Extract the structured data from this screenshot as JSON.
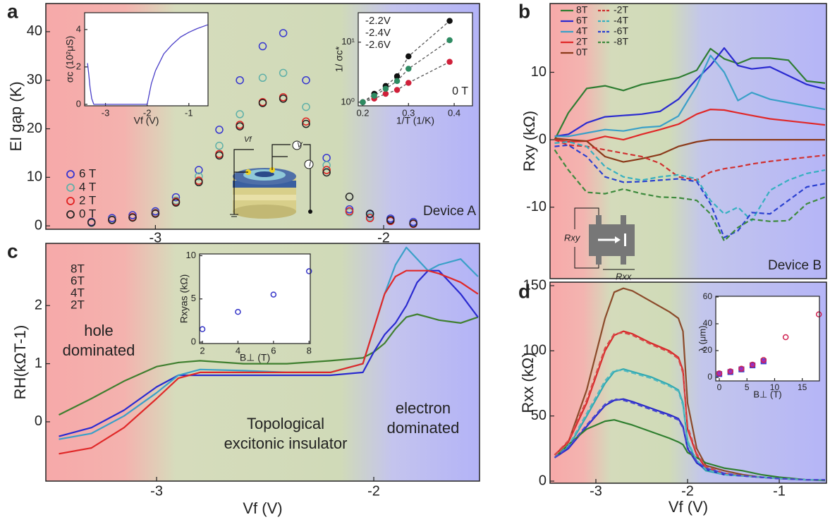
{
  "chart_data": [
    {
      "panel": "a",
      "type": "scatter",
      "ylabel": "EI gap (K)",
      "xlim": [
        -3.48,
        -1.58
      ],
      "ylim": [
        -0.7,
        45.8
      ],
      "xticks": [
        -3,
        -2
      ],
      "yticks": [
        0,
        10,
        20,
        30,
        40
      ],
      "x": [
        -3.28,
        -3.19,
        -3.1,
        -3.0,
        -2.91,
        -2.81,
        -2.72,
        -2.63,
        -2.53,
        -2.44,
        -2.34,
        -2.25,
        -2.15,
        -2.06,
        -1.97,
        -1.87
      ],
      "series": [
        {
          "name": "6 T",
          "color": "#3535d0",
          "values": [
            0.8,
            1.6,
            2.2,
            3.0,
            5.9,
            11.5,
            19.8,
            30,
            37,
            39.7,
            30,
            14,
            3.4,
            2.4,
            1.5,
            0.8
          ]
        },
        {
          "name": "4 T",
          "color": "#5fb0a8",
          "values": [
            0.6,
            1.3,
            1.8,
            2.7,
            5.2,
            10.2,
            16.5,
            23,
            30.5,
            31.5,
            24.5,
            12.5,
            2.8,
            1.9,
            1.0,
            0.5
          ]
        },
        {
          "name": "2 T",
          "color": "#e02020",
          "values": [
            0.7,
            1.2,
            1.8,
            2.6,
            5.0,
            9.3,
            14.8,
            20.8,
            25.5,
            26.5,
            21.5,
            11.5,
            3.0,
            1.6,
            1.0,
            0.4
          ]
        },
        {
          "name": "0 T",
          "color": "#222222",
          "values": [
            0.7,
            1.2,
            1.7,
            2.5,
            4.8,
            9.0,
            14.5,
            20.5,
            25.3,
            26.2,
            21.0,
            11.0,
            6.0,
            2.5,
            1.2,
            0.5
          ]
        }
      ],
      "annotations": [
        [
          "Device A"
        ]
      ],
      "schematic_labels": [
        "Vf",
        "V",
        "I"
      ]
    },
    {
      "type": "line",
      "xlabel": "Vf (V)",
      "ylabel": "σc (10²μS)",
      "xlim": [
        -3.5,
        -0.54
      ],
      "ylim": [
        -0.08,
        4.9
      ],
      "xticks": [
        -3,
        -2,
        -1
      ],
      "yticks": [
        0,
        2,
        4
      ],
      "x": [
        -3.43,
        -3.4,
        -3.37,
        -3.33,
        -3.28,
        -3.0,
        -2.5,
        -2.0,
        -1.9,
        -1.8,
        -1.6,
        -1.4,
        -1.2,
        -1.0,
        -0.8,
        -0.55
      ],
      "series": [
        {
          "color": "#4a3fc8",
          "values": [
            2.2,
            1.6,
            0.9,
            0.3,
            0,
            0,
            0,
            0,
            1.1,
            1.8,
            2.7,
            3.2,
            3.6,
            3.85,
            4.05,
            4.25
          ]
        }
      ]
    },
    {
      "type": "line",
      "log_y": true,
      "xlabel": "1/T (1/K)",
      "ylabel": "1/ σc*",
      "xlim": [
        0.19,
        0.44
      ],
      "ylim": [
        0.87,
        31
      ],
      "xticks": [
        0.2,
        0.3,
        0.4
      ],
      "yticks": [
        {
          "value": 1,
          "label": "10⁰"
        },
        {
          "value": 10,
          "label": "10¹"
        }
      ],
      "x": [
        0.2,
        0.225,
        0.25,
        0.275,
        0.3,
        0.39
      ],
      "series": [
        {
          "name": "-2.2V",
          "color": "#d0203a",
          "dashed": true,
          "marker": "circle",
          "filled": true,
          "values": [
            1,
            1.15,
            1.38,
            1.6,
            2.1,
            4.7
          ]
        },
        {
          "name": "-2.4V",
          "color": "#111111",
          "dashed": true,
          "marker": "circle",
          "filled": true,
          "values": [
            1,
            1.38,
            1.86,
            2.7,
            5.8,
            22.6
          ]
        },
        {
          "name": "-2.6V",
          "color": "#2e8b62",
          "dashed": true,
          "marker": "circle",
          "filled": true,
          "values": [
            1,
            1.28,
            1.67,
            2.25,
            3.6,
            10.8
          ]
        }
      ],
      "annotations": [
        [
          "0 T"
        ]
      ]
    },
    {
      "panel": "b",
      "type": "line",
      "ylabel": "Rxy (kΩ)",
      "xlim": [
        -3.5,
        -0.485
      ],
      "ylim": [
        -20.6,
        20.2
      ],
      "yticks": [
        -10,
        0,
        10
      ],
      "x": [
        -3.45,
        -3.3,
        -3.1,
        -2.9,
        -2.7,
        -2.5,
        -2.3,
        -2.1,
        -1.9,
        -1.75,
        -1.6,
        -1.45,
        -1.3,
        -1.1,
        -0.9,
        -0.7,
        -0.5
      ],
      "series": [
        {
          "name": "8T",
          "color": "#2e7d32",
          "values": [
            0,
            4,
            7.6,
            8,
            7.3,
            8.2,
            8.7,
            9.2,
            10.3,
            13.5,
            12,
            11.3,
            12.1,
            12.1,
            11.8,
            8.7,
            8.4
          ]
        },
        {
          "name": "6T",
          "color": "#2a2ad0",
          "values": [
            0.5,
            0.8,
            2.5,
            3.4,
            3.6,
            3.8,
            4.2,
            6,
            9,
            11,
            13.6,
            11,
            10.5,
            10.8,
            9.5,
            8.2,
            7.5
          ]
        },
        {
          "name": "4T",
          "color": "#3aa0c8",
          "values": [
            0.5,
            0.5,
            1,
            1.5,
            1.3,
            1.8,
            2,
            3.5,
            8,
            12.5,
            10,
            5.8,
            7,
            6,
            5.5,
            5,
            4.5
          ]
        },
        {
          "name": "2T",
          "color": "#e02828",
          "values": [
            0,
            -0.3,
            -0.2,
            0.5,
            0,
            0.8,
            1.5,
            2.3,
            3.8,
            4.5,
            4.4,
            4,
            3.6,
            3.1,
            2.8,
            2.5,
            2.2
          ]
        },
        {
          "name": "0T",
          "color": "#8b3a1a",
          "values": [
            0.2,
            0,
            -0.2,
            -2.5,
            -3.3,
            -2.8,
            -2.2,
            -1,
            -0.3,
            0,
            0,
            0,
            0,
            0,
            0,
            0,
            0
          ]
        },
        {
          "name": "-2T",
          "color": "#d03030",
          "dashed": true,
          "values": [
            0,
            -0.8,
            -1,
            -1.5,
            -2,
            -2.5,
            -3.5,
            -5.5,
            -6,
            -4.8,
            -4.3,
            -4,
            -3.6,
            -3.2,
            -2.9,
            -2.6,
            -2.3
          ]
        },
        {
          "name": "-4T",
          "color": "#35b0c0",
          "dashed": true,
          "values": [
            -0.5,
            -0.3,
            -1,
            -4,
            -5.5,
            -6,
            -5.5,
            -5.2,
            -5.8,
            -9,
            -11,
            -10,
            -12,
            -7.5,
            -6,
            -5,
            -4.5
          ]
        },
        {
          "name": "-6T",
          "color": "#2a40d0",
          "dashed": true,
          "values": [
            -1,
            -0.8,
            -2.5,
            -5.5,
            -6.3,
            -6.2,
            -6,
            -5.8,
            -6.2,
            -9.5,
            -14.5,
            -13.5,
            -10.8,
            -11,
            -9,
            -7,
            -6.5
          ]
        },
        {
          "name": "-8T",
          "color": "#3d8a3d",
          "dashed": true,
          "values": [
            -1.5,
            -4.5,
            -7.8,
            -8,
            -7.3,
            -8,
            -8.5,
            -8.6,
            -9,
            -11,
            -15,
            -13,
            -11.8,
            -12.1,
            -12,
            -9.5,
            -8.5
          ]
        }
      ],
      "annotations": [
        [
          "Device B"
        ]
      ],
      "schematic_labels": [
        "Rxy",
        "Rxx"
      ]
    },
    {
      "panel": "c",
      "type": "line",
      "xlabel": "Vf (V)",
      "ylabel": "RH(kΩT-1)",
      "xlim": [
        -3.51,
        -1.513
      ],
      "ylim": [
        -1.02,
        3.07
      ],
      "xticks": [
        -3,
        -2
      ],
      "yticks": [
        0,
        1,
        2
      ],
      "x": [
        -3.45,
        -3.3,
        -3.15,
        -3.0,
        -2.9,
        -2.8,
        -2.6,
        -2.4,
        -2.2,
        -2.05,
        -2.0,
        -1.95,
        -1.9,
        -1.85,
        -1.8,
        -1.75,
        -1.7,
        -1.6,
        -1.52
      ],
      "series": [
        {
          "name": "8T",
          "color": "#3f7f2f",
          "values": [
            0.12,
            0.4,
            0.7,
            0.95,
            1.02,
            1.05,
            1.0,
            1.0,
            1.05,
            1.1,
            1.2,
            1.35,
            1.6,
            1.8,
            1.85,
            1.8,
            1.75,
            1.7,
            1.8
          ]
        },
        {
          "name": "6T",
          "color": "#2a2ad0",
          "values": [
            -0.25,
            -0.1,
            0.2,
            0.6,
            0.8,
            0.8,
            0.8,
            0.8,
            0.8,
            0.85,
            1.2,
            1.5,
            1.7,
            2.0,
            2.4,
            2.6,
            2.6,
            2.2,
            1.8
          ]
        },
        {
          "name": "4T",
          "color": "#3aa0c8",
          "values": [
            -0.3,
            -0.2,
            0.1,
            0.5,
            0.8,
            0.9,
            0.88,
            0.85,
            0.85,
            1.0,
            1.6,
            2.2,
            2.7,
            3.0,
            2.8,
            2.6,
            2.7,
            2.8,
            2.5
          ]
        },
        {
          "name": "2T",
          "color": "#e02828",
          "values": [
            -0.55,
            -0.45,
            -0.1,
            0.4,
            0.75,
            0.85,
            0.85,
            0.85,
            0.85,
            1.0,
            1.6,
            2.2,
            2.5,
            2.6,
            2.6,
            2.6,
            2.55,
            2.4,
            2.2
          ]
        }
      ],
      "annotations": [
        [
          "hole",
          "dominated"
        ],
        [
          "Topological",
          "excitonic insulator"
        ],
        [
          "electron",
          "dominated"
        ]
      ]
    },
    {
      "type": "scatter",
      "xlabel": "B⊥ (T)",
      "ylabel": "Rxyas (kΩ)",
      "xlim": [
        1.84,
        8.07
      ],
      "ylim": [
        -0.16,
        10.2
      ],
      "xticks": [
        2,
        4,
        6,
        8
      ],
      "yticks": [
        0,
        5,
        10
      ],
      "x": [
        2,
        4,
        6,
        8
      ],
      "series": [
        {
          "color": "#3535c8",
          "values": [
            1.5,
            3.5,
            5.5,
            8.2
          ]
        }
      ]
    },
    {
      "panel": "d",
      "type": "line",
      "xlabel": "Vf (V)",
      "ylabel": "Rxx (kΩ)",
      "xlim": [
        -3.5,
        -0.485
      ],
      "ylim": [
        -1.6,
        152.7
      ],
      "xticks": [
        -3,
        -2,
        -1
      ],
      "yticks": [
        0,
        50,
        100,
        150
      ],
      "x": [
        -3.45,
        -3.3,
        -3.1,
        -2.9,
        -2.8,
        -2.7,
        -2.6,
        -2.4,
        -2.2,
        -2.1,
        -2.05,
        -2.0,
        -1.9,
        -1.8,
        -1.6,
        -1.4,
        -1.2,
        -1.0,
        -0.7,
        -0.5
      ],
      "series": [
        {
          "color": "#8b4a2a",
          "values": [
            20,
            30,
            70,
            125,
            145,
            148,
            146,
            138,
            130,
            125,
            115,
            60,
            25,
            12,
            8,
            5,
            3,
            2,
            1,
            1
          ]
        },
        {
          "color": "#d82828",
          "values": [
            20,
            30,
            60,
            100,
            112,
            115,
            113,
            106,
            100,
            95,
            85,
            40,
            20,
            10,
            6,
            4,
            3,
            2,
            1,
            1
          ]
        },
        {
          "color": "#30a8b0",
          "values": [
            18,
            26,
            50,
            75,
            84,
            86,
            84,
            80,
            74,
            70,
            60,
            30,
            15,
            8,
            5,
            4,
            3,
            2,
            1,
            1
          ]
        },
        {
          "color": "#2828c8",
          "values": [
            18,
            25,
            42,
            58,
            62,
            63,
            61,
            56,
            51,
            48,
            42,
            25,
            14,
            9,
            5,
            4,
            3,
            2,
            1,
            1
          ]
        },
        {
          "color": "#2f7f2f",
          "values": [
            18,
            28,
            40,
            46,
            47,
            45,
            43,
            38,
            33,
            30,
            28,
            22,
            18,
            14,
            10,
            8,
            5,
            3,
            1,
            0.5
          ]
        },
        {
          "color": "#d84848",
          "dashed": true,
          "values": [
            20,
            31,
            62,
            102,
            113,
            114,
            112,
            105,
            99,
            94,
            83,
            42,
            21,
            11,
            6,
            4,
            3,
            2,
            1,
            1
          ]
        },
        {
          "color": "#50b8c0",
          "dashed": true,
          "values": [
            18,
            27,
            52,
            77,
            85,
            85,
            83,
            79,
            73,
            69,
            58,
            31,
            16,
            9,
            5,
            4,
            3,
            2,
            1,
            1
          ]
        },
        {
          "color": "#4848d0",
          "dashed": true,
          "values": [
            18,
            26,
            43,
            59,
            63,
            62,
            60,
            55,
            50,
            47,
            41,
            26,
            15,
            10,
            6,
            4,
            3,
            2,
            1,
            1
          ]
        }
      ]
    },
    {
      "type": "scatter",
      "xlabel": "B⊥ (T)",
      "ylabel": "λ (μm)",
      "xlim": [
        -0.64,
        18.1
      ],
      "ylim": [
        -2.6,
        60.5
      ],
      "xticks": [
        0,
        5,
        10,
        15
      ],
      "yticks": [
        0,
        20,
        40,
        60
      ],
      "x": [
        0,
        2,
        4,
        6,
        8,
        12,
        18
      ],
      "series": [
        {
          "color": "#9b30c0",
          "marker": "square",
          "filled": true,
          "values": [
            2.5,
            4,
            6,
            9,
            12,
            null,
            null
          ]
        },
        {
          "color": "#d02050",
          "values": [
            3,
            4.5,
            6.5,
            9.5,
            13,
            30,
            47
          ]
        }
      ]
    }
  ]
}
